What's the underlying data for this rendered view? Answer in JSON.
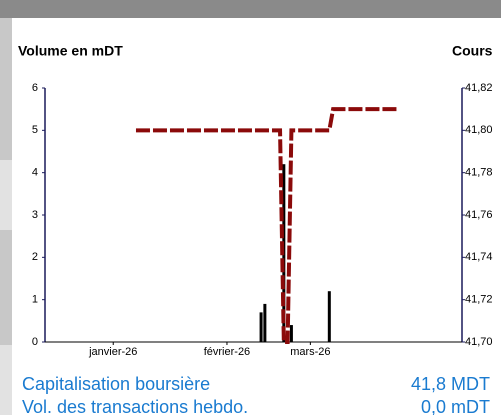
{
  "chart_data": {
    "type": "bar_line",
    "y_label": "Volume en mDT",
    "y2_label": "Cours",
    "xlim": [
      0,
      110
    ],
    "xticks": [
      {
        "value": 18,
        "label": "janvier-26"
      },
      {
        "value": 48,
        "label": "février-26"
      },
      {
        "value": 70,
        "label": "mars-26"
      }
    ],
    "ylim": [
      0,
      6
    ],
    "yticks": [
      0,
      1,
      2,
      3,
      4,
      5,
      6
    ],
    "y2lim": [
      41.7,
      41.82
    ],
    "y2ticks": [
      {
        "value": 41.7,
        "label": "41,70"
      },
      {
        "value": 41.72,
        "label": "41,72"
      },
      {
        "value": 41.74,
        "label": "41,74"
      },
      {
        "value": 41.76,
        "label": "41,76"
      },
      {
        "value": 41.78,
        "label": "41,78"
      },
      {
        "value": 41.8,
        "label": "41,80"
      },
      {
        "value": 41.82,
        "label": "41,82"
      }
    ],
    "series": [
      {
        "name": "Volume",
        "kind": "bar",
        "color": "#000000",
        "x": [
          57,
          58,
          63,
          65,
          75
        ],
        "values": [
          0.7,
          0.9,
          4.2,
          0.4,
          1.2
        ]
      },
      {
        "name": "Cours",
        "kind": "line",
        "axis": "y2",
        "color": "#8b0a0a",
        "x": [
          24,
          62,
          63,
          64,
          65,
          75,
          76,
          93
        ],
        "values": [
          41.8,
          41.8,
          41.7,
          41.7,
          41.8,
          41.8,
          41.81,
          41.81
        ]
      }
    ]
  },
  "info": [
    {
      "label": "Capitalisation boursière",
      "value": "41,8 MDT"
    },
    {
      "label": "Vol. des transactions hebdo.",
      "value": "0,0 mDT"
    }
  ]
}
